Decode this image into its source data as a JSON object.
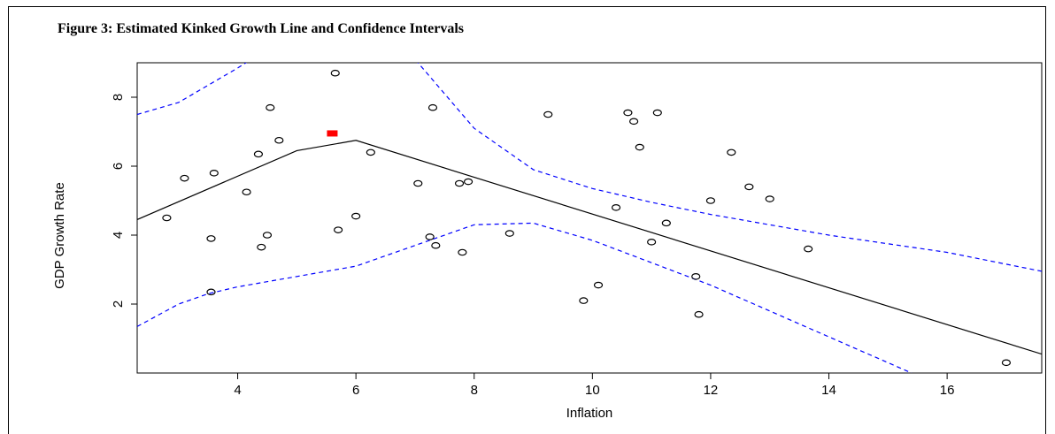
{
  "figure": {
    "title": "Figure 3: Estimated Kinked Growth Line and Confidence Intervals"
  },
  "chart_data": {
    "type": "scatter",
    "title": "Figure 3: Estimated Kinked Growth Line and Confidence Intervals",
    "xlabel": "Inflation",
    "ylabel": "GDP Growth Rate",
    "xlim": [
      2.3,
      17.6
    ],
    "ylim": [
      0.0,
      9.0
    ],
    "xticks": [
      4,
      6,
      8,
      10,
      12,
      14,
      16
    ],
    "yticks": [
      2,
      4,
      6,
      8
    ],
    "grid": false,
    "points": [
      [
        2.8,
        4.5
      ],
      [
        3.1,
        5.65
      ],
      [
        3.55,
        3.9
      ],
      [
        3.6,
        5.8
      ],
      [
        3.55,
        2.35
      ],
      [
        4.15,
        5.25
      ],
      [
        4.35,
        6.35
      ],
      [
        4.4,
        3.65
      ],
      [
        4.5,
        4.0
      ],
      [
        4.55,
        7.7
      ],
      [
        4.7,
        6.75
      ],
      [
        5.65,
        8.7
      ],
      [
        5.7,
        4.15
      ],
      [
        6.0,
        4.55
      ],
      [
        6.25,
        6.4
      ],
      [
        7.05,
        5.5
      ],
      [
        7.25,
        3.95
      ],
      [
        7.3,
        7.7
      ],
      [
        7.35,
        3.7
      ],
      [
        7.75,
        5.5
      ],
      [
        7.8,
        3.5
      ],
      [
        7.9,
        5.55
      ],
      [
        8.6,
        4.05
      ],
      [
        9.25,
        7.5
      ],
      [
        9.85,
        2.1
      ],
      [
        10.1,
        2.55
      ],
      [
        10.4,
        4.8
      ],
      [
        10.6,
        7.55
      ],
      [
        10.7,
        7.3
      ],
      [
        10.8,
        6.55
      ],
      [
        11.0,
        3.8
      ],
      [
        11.1,
        7.55
      ],
      [
        11.25,
        4.35
      ],
      [
        11.75,
        2.8
      ],
      [
        11.8,
        1.7
      ],
      [
        12.0,
        5.0
      ],
      [
        12.35,
        6.4
      ],
      [
        12.65,
        5.4
      ],
      [
        13.0,
        5.05
      ],
      [
        13.65,
        3.6
      ],
      [
        17.0,
        0.3
      ]
    ],
    "series": [
      {
        "kind": "estimate",
        "color": "#000000",
        "style": "solid",
        "x": [
          2.3,
          5.0,
          6.0,
          17.6
        ],
        "y": [
          4.45,
          6.45,
          6.75,
          0.55
        ]
      },
      {
        "kind": "upper-ci",
        "color": "#0000ff",
        "style": "dashed",
        "x": [
          2.3,
          3.0,
          4.0,
          4.6,
          6.8,
          8.0,
          9.0,
          10.0,
          11.0,
          12.0,
          13.0,
          14.0,
          15.0,
          16.0,
          17.6
        ],
        "y": [
          7.5,
          7.85,
          8.85,
          9.5,
          9.5,
          7.1,
          5.9,
          5.35,
          4.95,
          4.6,
          4.3,
          4.0,
          3.75,
          3.5,
          2.95
        ]
      },
      {
        "kind": "lower-ci",
        "color": "#0000ff",
        "style": "dashed",
        "x": [
          2.3,
          3.0,
          3.5,
          4.0,
          5.0,
          6.0,
          7.0,
          8.0,
          9.0,
          10.0,
          11.0,
          12.0,
          13.0,
          14.0,
          15.0,
          15.4
        ],
        "y": [
          1.35,
          2.0,
          2.3,
          2.5,
          2.8,
          3.1,
          3.7,
          4.3,
          4.35,
          3.85,
          3.2,
          2.55,
          1.8,
          1.05,
          0.3,
          0.0
        ]
      }
    ],
    "marker": {
      "kind": "kink-marker",
      "color": "#ff0000",
      "x": 5.6,
      "y": 6.95
    }
  }
}
